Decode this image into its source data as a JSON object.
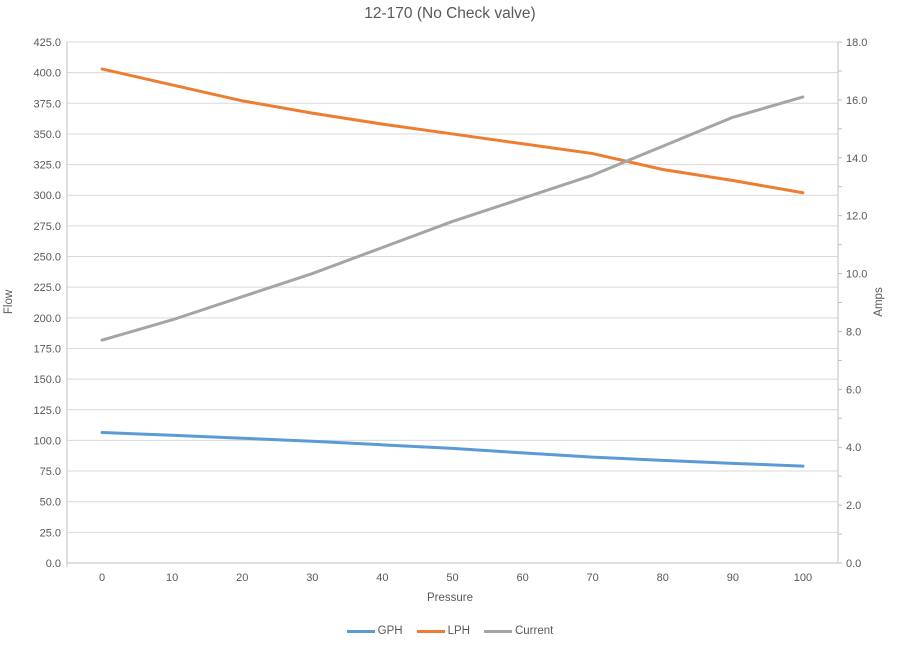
{
  "chart_data": {
    "type": "line",
    "title": "12-170 (No Check valve)",
    "xlabel": "Pressure",
    "ylabel_left": "Flow",
    "ylabel_right": "Amps",
    "grid": true,
    "legend_position": "bottom",
    "x": [
      0,
      10,
      20,
      30,
      40,
      50,
      60,
      70,
      80,
      90,
      100
    ],
    "series": [
      {
        "name": "GPH",
        "axis": "left",
        "color": "#5B9BD5",
        "values": [
          106.5,
          104.2,
          101.8,
          99.3,
          96.4,
          93.5,
          89.8,
          86.4,
          83.7,
          81.3,
          79.0
        ]
      },
      {
        "name": "LPH",
        "axis": "left",
        "color": "#ED7D31",
        "values": [
          403,
          390,
          377,
          367,
          358,
          350,
          342,
          334,
          321,
          312,
          302
        ]
      },
      {
        "name": "Current",
        "axis": "right",
        "color": "#A5A5A5",
        "values": [
          7.7,
          8.4,
          9.2,
          10.0,
          10.9,
          11.8,
          12.6,
          13.4,
          14.4,
          15.4,
          16.1
        ]
      }
    ],
    "left_axis": {
      "min": 0,
      "max": 425,
      "step": 25,
      "decimals": 1,
      "ticks": [
        "0.0",
        "25.0",
        "50.0",
        "75.0",
        "100.0",
        "125.0",
        "150.0",
        "175.0",
        "200.0",
        "225.0",
        "250.0",
        "275.0",
        "300.0",
        "325.0",
        "350.0",
        "375.0",
        "400.0",
        "425.0"
      ]
    },
    "right_axis": {
      "min": 0,
      "max": 18,
      "step": 2,
      "decimals": 1,
      "ticks": [
        "0.0",
        "2.0",
        "4.0",
        "6.0",
        "8.0",
        "10.0",
        "12.0",
        "14.0",
        "16.0",
        "18.0"
      ]
    },
    "colors": {
      "gridline": "#D9D9D9",
      "axis_line": "#BFBFBF",
      "text": "#595959"
    }
  }
}
